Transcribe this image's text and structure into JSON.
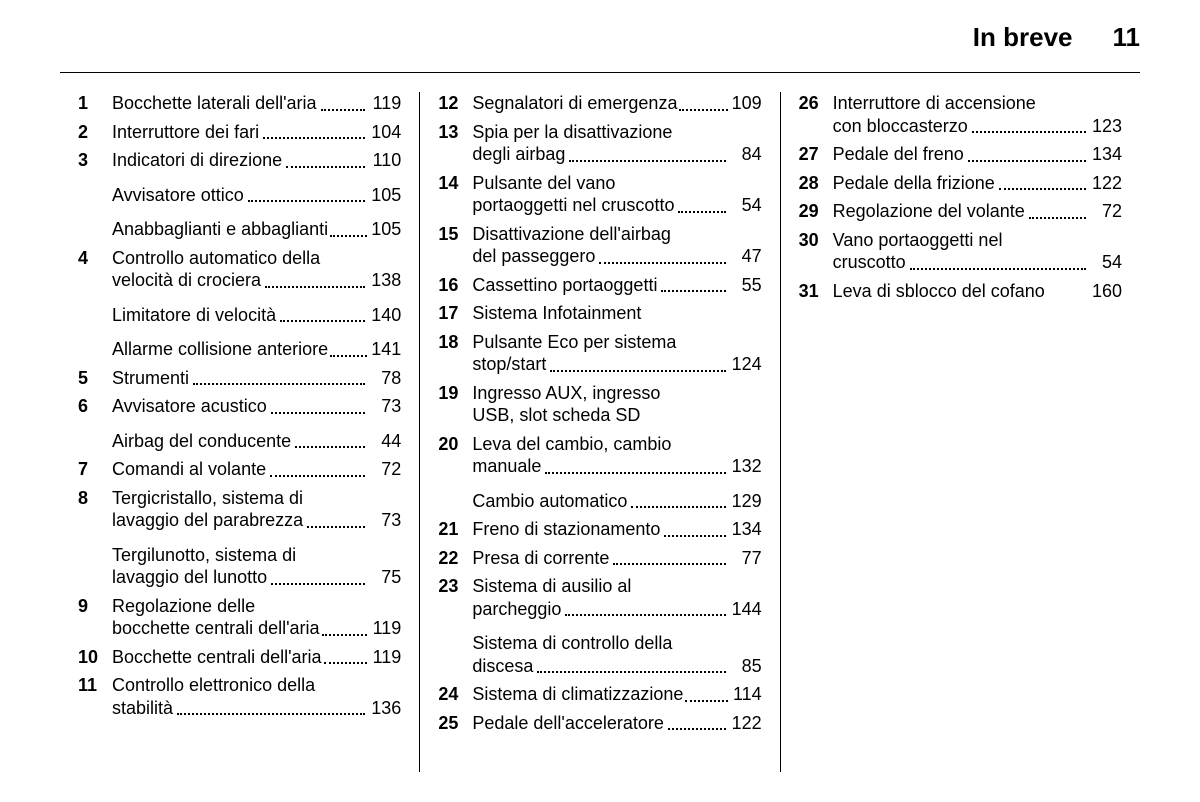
{
  "header": {
    "title": "In breve",
    "page": "11"
  },
  "columns": [
    [
      {
        "num": "1",
        "lines": [
          {
            "text": "Bocchette laterali dell'aria",
            "page": "119"
          }
        ]
      },
      {
        "num": "2",
        "lines": [
          {
            "text": "Interruttore dei fari",
            "page": "104"
          }
        ]
      },
      {
        "num": "3",
        "lines": [
          {
            "text": "Indicatori di direzione",
            "page": "110"
          }
        ]
      },
      {
        "num": "",
        "lines": [
          {
            "text": "Avvisatore ottico",
            "page": "105"
          }
        ],
        "gapBefore": true
      },
      {
        "num": "",
        "lines": [
          {
            "text": "Anabbaglianti e abbaglianti",
            "page": "105",
            "tight": true
          }
        ],
        "gapBefore": true
      },
      {
        "num": "4",
        "lines": [
          {
            "text": "Controllo automatico della"
          },
          {
            "text": "velocità di crociera",
            "page": "138"
          }
        ]
      },
      {
        "num": "",
        "lines": [
          {
            "text": "Limitatore di velocità",
            "page": "140"
          }
        ],
        "gapBefore": true
      },
      {
        "num": "",
        "lines": [
          {
            "text": "Allarme collisione anteriore",
            "page": "141",
            "tight": true
          }
        ],
        "gapBefore": true
      },
      {
        "num": "5",
        "lines": [
          {
            "text": "Strumenti",
            "page": "78"
          }
        ]
      },
      {
        "num": "6",
        "lines": [
          {
            "text": "Avvisatore acustico",
            "page": "73"
          }
        ]
      },
      {
        "num": "",
        "lines": [
          {
            "text": "Airbag del conducente",
            "page": "44"
          }
        ],
        "gapBefore": true
      },
      {
        "num": "7",
        "lines": [
          {
            "text": "Comandi al volante",
            "page": "72"
          }
        ]
      },
      {
        "num": "8",
        "lines": [
          {
            "text": "Tergicristallo, sistema di"
          },
          {
            "text": "lavaggio del parabrezza",
            "page": "73"
          }
        ]
      },
      {
        "num": "",
        "lines": [
          {
            "text": "Tergilunotto, sistema di"
          },
          {
            "text": "lavaggio del lunotto",
            "page": "75"
          }
        ],
        "gapBefore": true
      },
      {
        "num": "9",
        "lines": [
          {
            "text": "Regolazione delle"
          },
          {
            "text": "bocchette centrali dell'aria",
            "page": "119",
            "tight": true
          }
        ]
      },
      {
        "num": "10",
        "lines": [
          {
            "text": "Bocchette centrali dell'aria",
            "page": "119",
            "tight": true
          }
        ]
      },
      {
        "num": "11",
        "lines": [
          {
            "text": "Controllo elettronico della"
          },
          {
            "text": "stabilità",
            "page": "136"
          }
        ]
      }
    ],
    [
      {
        "num": "12",
        "lines": [
          {
            "text": "Segnalatori di emergenza",
            "page": "109",
            "tight": true
          }
        ]
      },
      {
        "num": "13",
        "lines": [
          {
            "text": "Spia per la disattivazione"
          },
          {
            "text": "degli airbag",
            "page": "84"
          }
        ]
      },
      {
        "num": "14",
        "lines": [
          {
            "text": "Pulsante del vano"
          },
          {
            "text": "portaoggetti nel cruscotto",
            "page": "54"
          }
        ]
      },
      {
        "num": "15",
        "lines": [
          {
            "text": "Disattivazione dell'airbag"
          },
          {
            "text": "del passeggero",
            "page": "47"
          }
        ]
      },
      {
        "num": "16",
        "lines": [
          {
            "text": "Cassettino portaoggetti",
            "page": "55"
          }
        ]
      },
      {
        "num": "17",
        "lines": [
          {
            "text": "Sistema Infotainment",
            "page": "",
            "nopage": true
          }
        ]
      },
      {
        "num": "18",
        "lines": [
          {
            "text": "Pulsante Eco per sistema"
          },
          {
            "text": "stop/start",
            "page": "124"
          }
        ]
      },
      {
        "num": "19",
        "lines": [
          {
            "text": "Ingresso AUX, ingresso"
          },
          {
            "text": "USB, slot scheda SD",
            "page": "",
            "nopage": true
          }
        ]
      },
      {
        "num": "20",
        "lines": [
          {
            "text": "Leva del cambio, cambio"
          },
          {
            "text": "manuale",
            "page": "132"
          }
        ]
      },
      {
        "num": "",
        "lines": [
          {
            "text": "Cambio automatico",
            "page": "129"
          }
        ],
        "gapBefore": true
      },
      {
        "num": "21",
        "lines": [
          {
            "text": "Freno di stazionamento",
            "page": "134"
          }
        ]
      },
      {
        "num": "22",
        "lines": [
          {
            "text": "Presa di corrente",
            "page": "77"
          }
        ]
      },
      {
        "num": "23",
        "lines": [
          {
            "text": "Sistema di ausilio al"
          },
          {
            "text": "parcheggio",
            "page": "144"
          }
        ]
      },
      {
        "num": "",
        "lines": [
          {
            "text": "Sistema di controllo della"
          },
          {
            "text": "discesa",
            "page": "85"
          }
        ],
        "gapBefore": true
      },
      {
        "num": "24",
        "lines": [
          {
            "text": "Sistema di climatizzazione",
            "page": "114",
            "tight": true
          }
        ]
      },
      {
        "num": "25",
        "lines": [
          {
            "text": "Pedale dell'acceleratore",
            "page": "122"
          }
        ]
      }
    ],
    [
      {
        "num": "26",
        "lines": [
          {
            "text": "Interruttore di accensione"
          },
          {
            "text": "con bloccasterzo",
            "page": "123"
          }
        ]
      },
      {
        "num": "27",
        "lines": [
          {
            "text": "Pedale del freno",
            "page": "134"
          }
        ]
      },
      {
        "num": "28",
        "lines": [
          {
            "text": "Pedale della frizione",
            "page": "122"
          }
        ]
      },
      {
        "num": "29",
        "lines": [
          {
            "text": "Regolazione del volante",
            "page": "72"
          }
        ]
      },
      {
        "num": "30",
        "lines": [
          {
            "text": "Vano portaoggetti nel"
          },
          {
            "text": "cruscotto",
            "page": "54"
          }
        ]
      },
      {
        "num": "31",
        "lines": [
          {
            "text": "Leva di sblocco del cofano",
            "page": "160",
            "nodots": true
          }
        ]
      }
    ]
  ]
}
